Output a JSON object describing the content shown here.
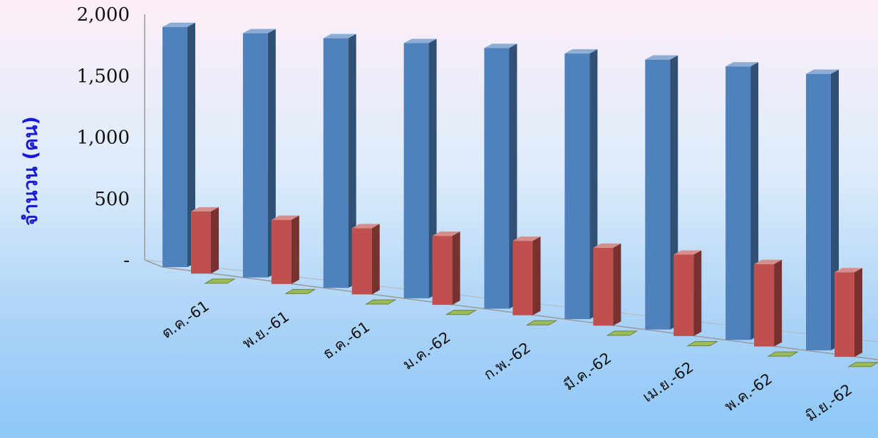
{
  "chart_data": {
    "type": "bar",
    "subtype": "3d-clustered-column",
    "ylabel": "จำนวน (คน)",
    "xlabel": "",
    "title": "",
    "ylim": [
      0,
      2000
    ],
    "yticks": [
      {
        "value": 0,
        "label": "-"
      },
      {
        "value": 500,
        "label": "500"
      },
      {
        "value": 1000,
        "label": "1,000"
      },
      {
        "value": 1500,
        "label": "1,500"
      },
      {
        "value": 2000,
        "label": "2,000"
      }
    ],
    "categories": [
      "ต.ค.-61",
      "พ.ย.-61",
      "ธ.ค.-61",
      "ม.ค.-62",
      "ก.พ.-62",
      "มี.ค.-62",
      "เม.ย.-62",
      "พ.ค.-62",
      "มิ.ย.-62"
    ],
    "series": [
      {
        "color": "#4f81bd",
        "values": [
          1900,
          1910,
          1930,
          1950,
          1970,
          1985,
          1995,
          2000,
          2000
        ]
      },
      {
        "color": "#c0504d",
        "values": [
          490,
          500,
          510,
          525,
          560,
          580,
          600,
          600,
          610
        ]
      },
      {
        "color": "#9bbb59",
        "values": [
          5,
          5,
          5,
          5,
          5,
          5,
          5,
          5,
          5
        ]
      }
    ],
    "grid": false,
    "legend": "none"
  }
}
